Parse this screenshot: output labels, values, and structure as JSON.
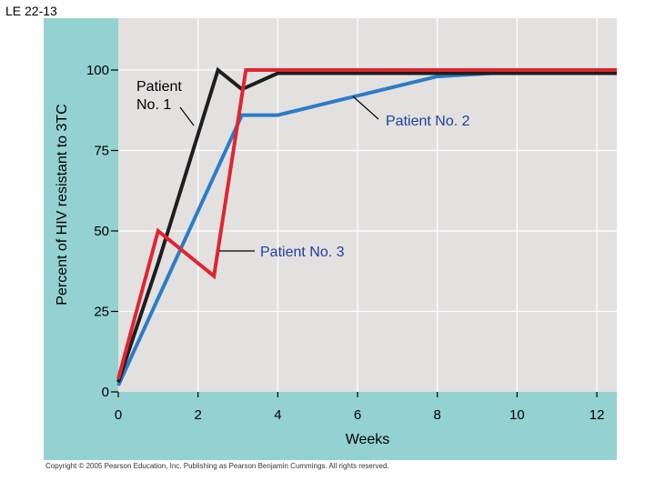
{
  "page_label": "LE 22-13",
  "copyright": "Copyright © 2005 Pearson Education, Inc. Publishing as Pearson Benjamin Cummings. All rights reserved.",
  "colors": {
    "frame": "#93d2d1",
    "plot_bg": "#e3e0e0",
    "grid": "#ffffff"
  },
  "chart_data": {
    "type": "line",
    "title": "",
    "xlabel": "Weeks",
    "ylabel": "Percent of HIV resistant to 3TC",
    "xlim": [
      0,
      12.5
    ],
    "ylim": [
      0,
      100
    ],
    "x_ticks": [
      "0",
      "2",
      "4",
      "6",
      "8",
      "10",
      "12"
    ],
    "y_ticks": [
      "0",
      "25",
      "50",
      "75",
      "100"
    ],
    "grid": true,
    "series": [
      {
        "name": "Patient No. 1",
        "color": "#1e1e1e",
        "points": [
          [
            0,
            3
          ],
          [
            1,
            40
          ],
          [
            2.5,
            100
          ],
          [
            3.1,
            94
          ],
          [
            4,
            99
          ],
          [
            12.5,
            99
          ]
        ]
      },
      {
        "name": "Patient No. 2",
        "color": "#2a7dc4",
        "points": [
          [
            0,
            2
          ],
          [
            3.1,
            86
          ],
          [
            4,
            86
          ],
          [
            6,
            92
          ],
          [
            8,
            98
          ],
          [
            10,
            99.5
          ],
          [
            12.5,
            100
          ]
        ]
      },
      {
        "name": "Patient No. 3",
        "color": "#e02530",
        "points": [
          [
            0,
            4
          ],
          [
            1,
            50
          ],
          [
            2.4,
            36
          ],
          [
            3.2,
            100
          ],
          [
            12.5,
            100
          ]
        ]
      }
    ],
    "annotations": [
      {
        "text_lines": [
          "Patient",
          "No. 1"
        ],
        "series": "Patient No. 1"
      },
      {
        "text_lines": [
          "Patient No. 2"
        ],
        "series": "Patient No. 2"
      },
      {
        "text_lines": [
          "Patient No. 3"
        ],
        "series": "Patient No. 3"
      }
    ]
  }
}
